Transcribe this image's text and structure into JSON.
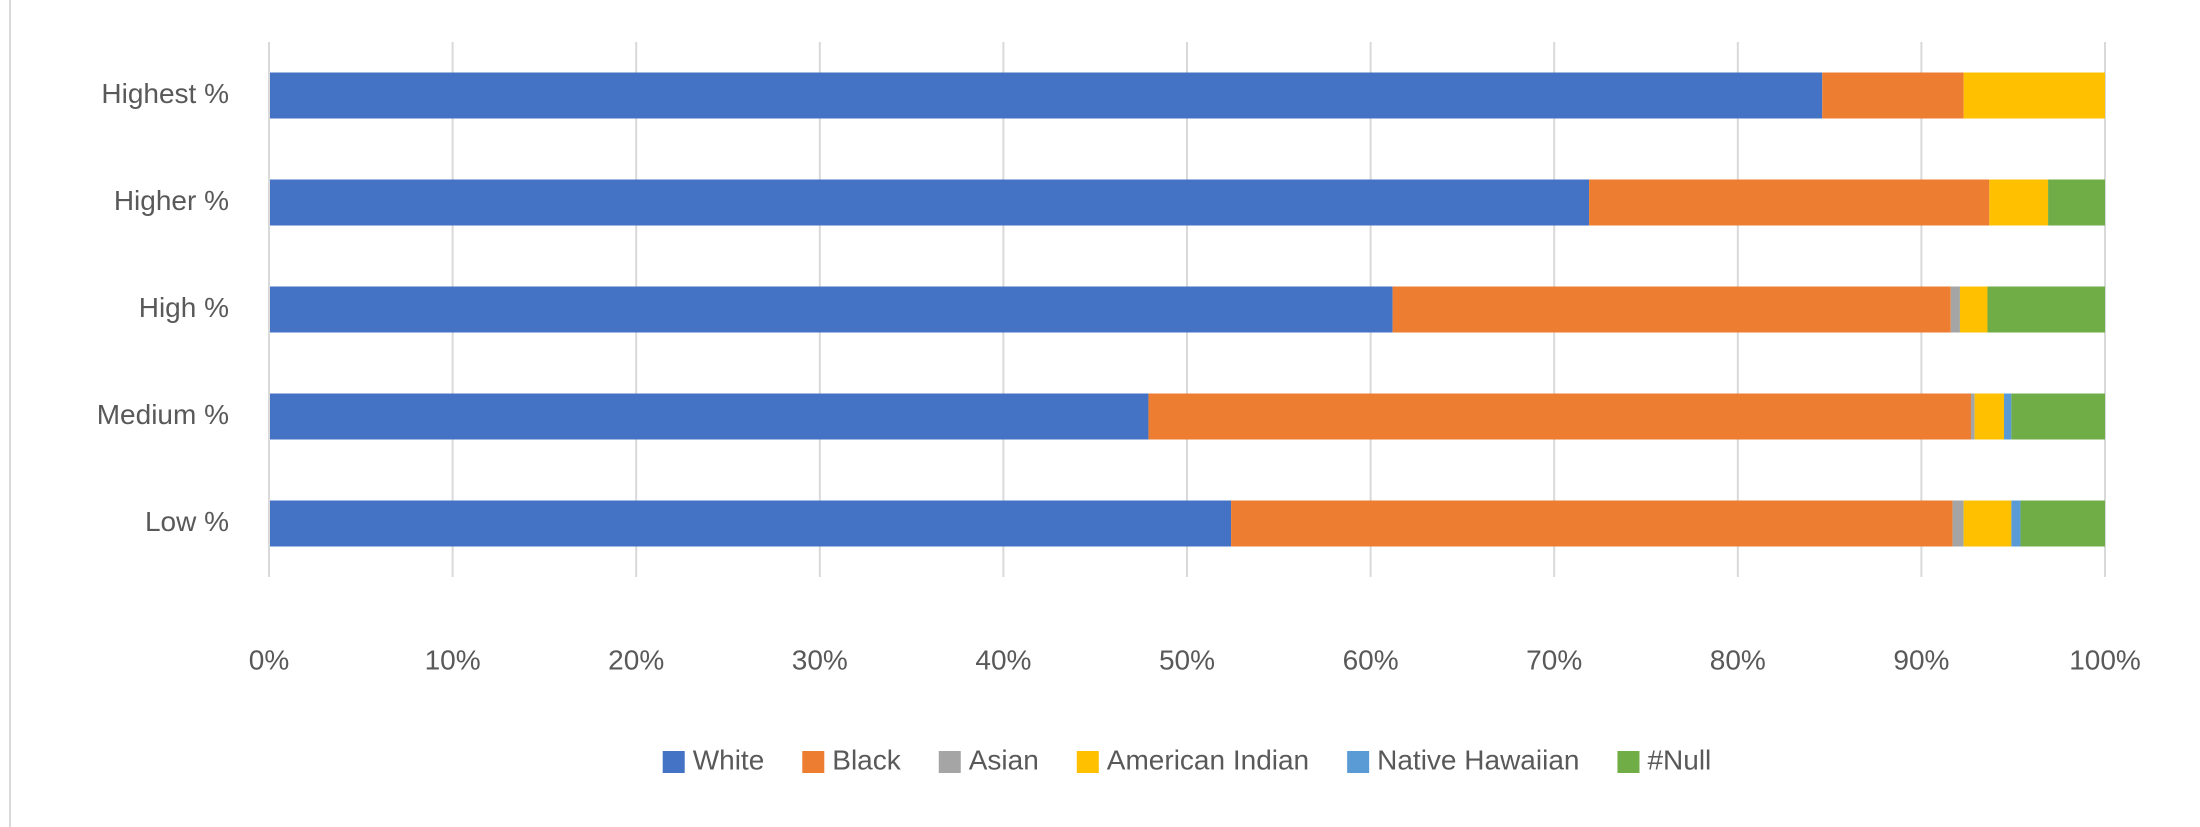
{
  "chart_data": {
    "type": "stacked-bar",
    "orientation": "horizontal",
    "categories": [
      "Highest %",
      "Higher %",
      "High %",
      "Medium %",
      "Low %"
    ],
    "series": [
      {
        "name": "White",
        "color": "#4472c4",
        "values": [
          84.6,
          71.9,
          61.2,
          47.9,
          52.4
        ]
      },
      {
        "name": "Black",
        "color": "#ed7d31",
        "values": [
          7.7,
          21.8,
          30.4,
          44.8,
          39.3
        ]
      },
      {
        "name": "Asian",
        "color": "#a5a5a5",
        "values": [
          0,
          0,
          0.5,
          0.2,
          0.6
        ]
      },
      {
        "name": "American Indian",
        "color": "#ffc000",
        "values": [
          7.7,
          3.2,
          1.5,
          1.6,
          2.6
        ]
      },
      {
        "name": "Native Hawaiian",
        "color": "#5b9bd5",
        "values": [
          0,
          0,
          0,
          0.4,
          0.5
        ]
      },
      {
        "name": "#Null",
        "color": "#70ad47",
        "values": [
          0,
          3.1,
          6.4,
          5.1,
          4.6
        ]
      }
    ],
    "xlim": [
      0,
      100
    ],
    "xticks": [
      {
        "value": 0,
        "label": "0%"
      },
      {
        "value": 10,
        "label": "10%"
      },
      {
        "value": 20,
        "label": "20%"
      },
      {
        "value": 30,
        "label": "30%"
      },
      {
        "value": 40,
        "label": "40%"
      },
      {
        "value": 50,
        "label": "50%"
      },
      {
        "value": 60,
        "label": "60%"
      },
      {
        "value": 70,
        "label": "70%"
      },
      {
        "value": 80,
        "label": "80%"
      },
      {
        "value": 90,
        "label": "90%"
      },
      {
        "value": 100,
        "label": "100%"
      }
    ],
    "grid": true,
    "legend": "bottom"
  }
}
